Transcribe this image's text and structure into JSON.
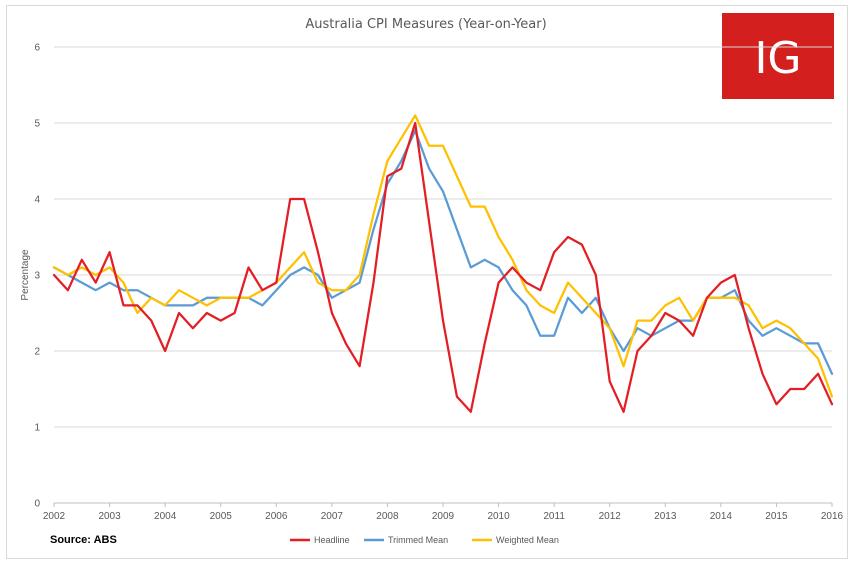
{
  "chart_data": {
    "type": "line",
    "title": "Australia CPI Measures (Year-on-Year)",
    "ylabel": "Percentage",
    "xlabel": "",
    "ylim": [
      0,
      6
    ],
    "xlim": [
      2002,
      2016
    ],
    "y_ticks": [
      "0",
      "1",
      "2",
      "3",
      "4",
      "5",
      "6"
    ],
    "x_ticks": [
      "2002",
      "2003",
      "2004",
      "2005",
      "2006",
      "2007",
      "2008",
      "2009",
      "2010",
      "2011",
      "2012",
      "2013",
      "2014",
      "2015",
      "2016"
    ],
    "grid": "horizontal",
    "legend_position": "bottom-center",
    "source": "Source: ABS",
    "logo_text": "IG",
    "series": [
      {
        "name": "Headline",
        "color": "#e31e24",
        "points": [
          [
            2002,
            3.0
          ],
          [
            2002.25,
            2.8
          ],
          [
            2002.5,
            3.2
          ],
          [
            2002.75,
            2.9
          ],
          [
            2003,
            3.3
          ],
          [
            2003.25,
            2.6
          ],
          [
            2003.5,
            2.6
          ],
          [
            2003.75,
            2.4
          ],
          [
            2004,
            2.0
          ],
          [
            2004.25,
            2.5
          ],
          [
            2004.5,
            2.3
          ],
          [
            2004.75,
            2.5
          ],
          [
            2005,
            2.4
          ],
          [
            2005.25,
            2.5
          ],
          [
            2005.5,
            3.1
          ],
          [
            2005.75,
            2.8
          ],
          [
            2006,
            2.9
          ],
          [
            2006.25,
            4.0
          ],
          [
            2006.5,
            4.0
          ],
          [
            2006.75,
            3.3
          ],
          [
            2007,
            2.5
          ],
          [
            2007.25,
            2.1
          ],
          [
            2007.5,
            1.8
          ],
          [
            2007.75,
            2.9
          ],
          [
            2008,
            4.3
          ],
          [
            2008.25,
            4.4
          ],
          [
            2008.5,
            5.0
          ],
          [
            2008.75,
            3.7
          ],
          [
            2009,
            2.4
          ],
          [
            2009.25,
            1.4
          ],
          [
            2009.5,
            1.2
          ],
          [
            2009.75,
            2.1
          ],
          [
            2010,
            2.9
          ],
          [
            2010.25,
            3.1
          ],
          [
            2010.5,
            2.9
          ],
          [
            2010.75,
            2.8
          ],
          [
            2011,
            3.3
          ],
          [
            2011.25,
            3.5
          ],
          [
            2011.5,
            3.4
          ],
          [
            2011.75,
            3.0
          ],
          [
            2012,
            1.6
          ],
          [
            2012.25,
            1.2
          ],
          [
            2012.5,
            2.0
          ],
          [
            2012.75,
            2.2
          ],
          [
            2013,
            2.5
          ],
          [
            2013.25,
            2.4
          ],
          [
            2013.5,
            2.2
          ],
          [
            2013.75,
            2.7
          ],
          [
            2014,
            2.9
          ],
          [
            2014.25,
            3.0
          ],
          [
            2014.5,
            2.3
          ],
          [
            2014.75,
            1.7
          ],
          [
            2015,
            1.3
          ],
          [
            2015.25,
            1.5
          ],
          [
            2015.5,
            1.5
          ],
          [
            2015.75,
            1.7
          ],
          [
            2016,
            1.3
          ]
        ]
      },
      {
        "name": "Trimmed Mean",
        "color": "#5b9bd5",
        "points": [
          [
            2002,
            3.1
          ],
          [
            2002.25,
            3.0
          ],
          [
            2002.5,
            2.9
          ],
          [
            2002.75,
            2.8
          ],
          [
            2003,
            2.9
          ],
          [
            2003.25,
            2.8
          ],
          [
            2003.5,
            2.8
          ],
          [
            2003.75,
            2.7
          ],
          [
            2004,
            2.6
          ],
          [
            2004.25,
            2.6
          ],
          [
            2004.5,
            2.6
          ],
          [
            2004.75,
            2.7
          ],
          [
            2005,
            2.7
          ],
          [
            2005.25,
            2.7
          ],
          [
            2005.5,
            2.7
          ],
          [
            2005.75,
            2.6
          ],
          [
            2006,
            2.8
          ],
          [
            2006.25,
            3.0
          ],
          [
            2006.5,
            3.1
          ],
          [
            2006.75,
            3.0
          ],
          [
            2007,
            2.7
          ],
          [
            2007.25,
            2.8
          ],
          [
            2007.5,
            2.9
          ],
          [
            2007.75,
            3.6
          ],
          [
            2008,
            4.2
          ],
          [
            2008.25,
            4.5
          ],
          [
            2008.5,
            4.9
          ],
          [
            2008.75,
            4.4
          ],
          [
            2009,
            4.1
          ],
          [
            2009.25,
            3.6
          ],
          [
            2009.5,
            3.1
          ],
          [
            2009.75,
            3.2
          ],
          [
            2010,
            3.1
          ],
          [
            2010.25,
            2.8
          ],
          [
            2010.5,
            2.6
          ],
          [
            2010.75,
            2.2
          ],
          [
            2011,
            2.2
          ],
          [
            2011.25,
            2.7
          ],
          [
            2011.5,
            2.5
          ],
          [
            2011.75,
            2.7
          ],
          [
            2012,
            2.3
          ],
          [
            2012.25,
            2.0
          ],
          [
            2012.5,
            2.3
          ],
          [
            2012.75,
            2.2
          ],
          [
            2013,
            2.3
          ],
          [
            2013.25,
            2.4
          ],
          [
            2013.5,
            2.4
          ],
          [
            2013.75,
            2.7
          ],
          [
            2014,
            2.7
          ],
          [
            2014.25,
            2.8
          ],
          [
            2014.5,
            2.4
          ],
          [
            2014.75,
            2.2
          ],
          [
            2015,
            2.3
          ],
          [
            2015.25,
            2.2
          ],
          [
            2015.5,
            2.1
          ],
          [
            2015.75,
            2.1
          ],
          [
            2016,
            1.7
          ]
        ]
      },
      {
        "name": "Weighted Mean",
        "color": "#ffc000",
        "points": [
          [
            2002,
            3.1
          ],
          [
            2002.25,
            3.0
          ],
          [
            2002.5,
            3.1
          ],
          [
            2002.75,
            3.0
          ],
          [
            2003,
            3.1
          ],
          [
            2003.25,
            2.9
          ],
          [
            2003.5,
            2.5
          ],
          [
            2003.75,
            2.7
          ],
          [
            2004,
            2.6
          ],
          [
            2004.25,
            2.8
          ],
          [
            2004.5,
            2.7
          ],
          [
            2004.75,
            2.6
          ],
          [
            2005,
            2.7
          ],
          [
            2005.25,
            2.7
          ],
          [
            2005.5,
            2.7
          ],
          [
            2005.75,
            2.8
          ],
          [
            2006,
            2.9
          ],
          [
            2006.25,
            3.1
          ],
          [
            2006.5,
            3.3
          ],
          [
            2006.75,
            2.9
          ],
          [
            2007,
            2.8
          ],
          [
            2007.25,
            2.8
          ],
          [
            2007.5,
            3.0
          ],
          [
            2007.75,
            3.8
          ],
          [
            2008,
            4.5
          ],
          [
            2008.25,
            4.8
          ],
          [
            2008.5,
            5.1
          ],
          [
            2008.75,
            4.7
          ],
          [
            2009,
            4.7
          ],
          [
            2009.25,
            4.3
          ],
          [
            2009.5,
            3.9
          ],
          [
            2009.75,
            3.9
          ],
          [
            2010,
            3.5
          ],
          [
            2010.25,
            3.2
          ],
          [
            2010.5,
            2.8
          ],
          [
            2010.75,
            2.6
          ],
          [
            2011,
            2.5
          ],
          [
            2011.25,
            2.9
          ],
          [
            2011.5,
            2.7
          ],
          [
            2011.75,
            2.5
          ],
          [
            2012,
            2.3
          ],
          [
            2012.25,
            1.8
          ],
          [
            2012.5,
            2.4
          ],
          [
            2012.75,
            2.4
          ],
          [
            2013,
            2.6
          ],
          [
            2013.25,
            2.7
          ],
          [
            2013.5,
            2.4
          ],
          [
            2013.75,
            2.7
          ],
          [
            2014,
            2.7
          ],
          [
            2014.25,
            2.7
          ],
          [
            2014.5,
            2.6
          ],
          [
            2014.75,
            2.3
          ],
          [
            2015,
            2.4
          ],
          [
            2015.25,
            2.3
          ],
          [
            2015.5,
            2.1
          ],
          [
            2015.75,
            1.9
          ],
          [
            2016,
            1.4
          ]
        ]
      }
    ]
  },
  "colors": {
    "grid": "#d9d9d9",
    "axis": "#bfbfbf",
    "logo_bg": "#d41f1f"
  }
}
